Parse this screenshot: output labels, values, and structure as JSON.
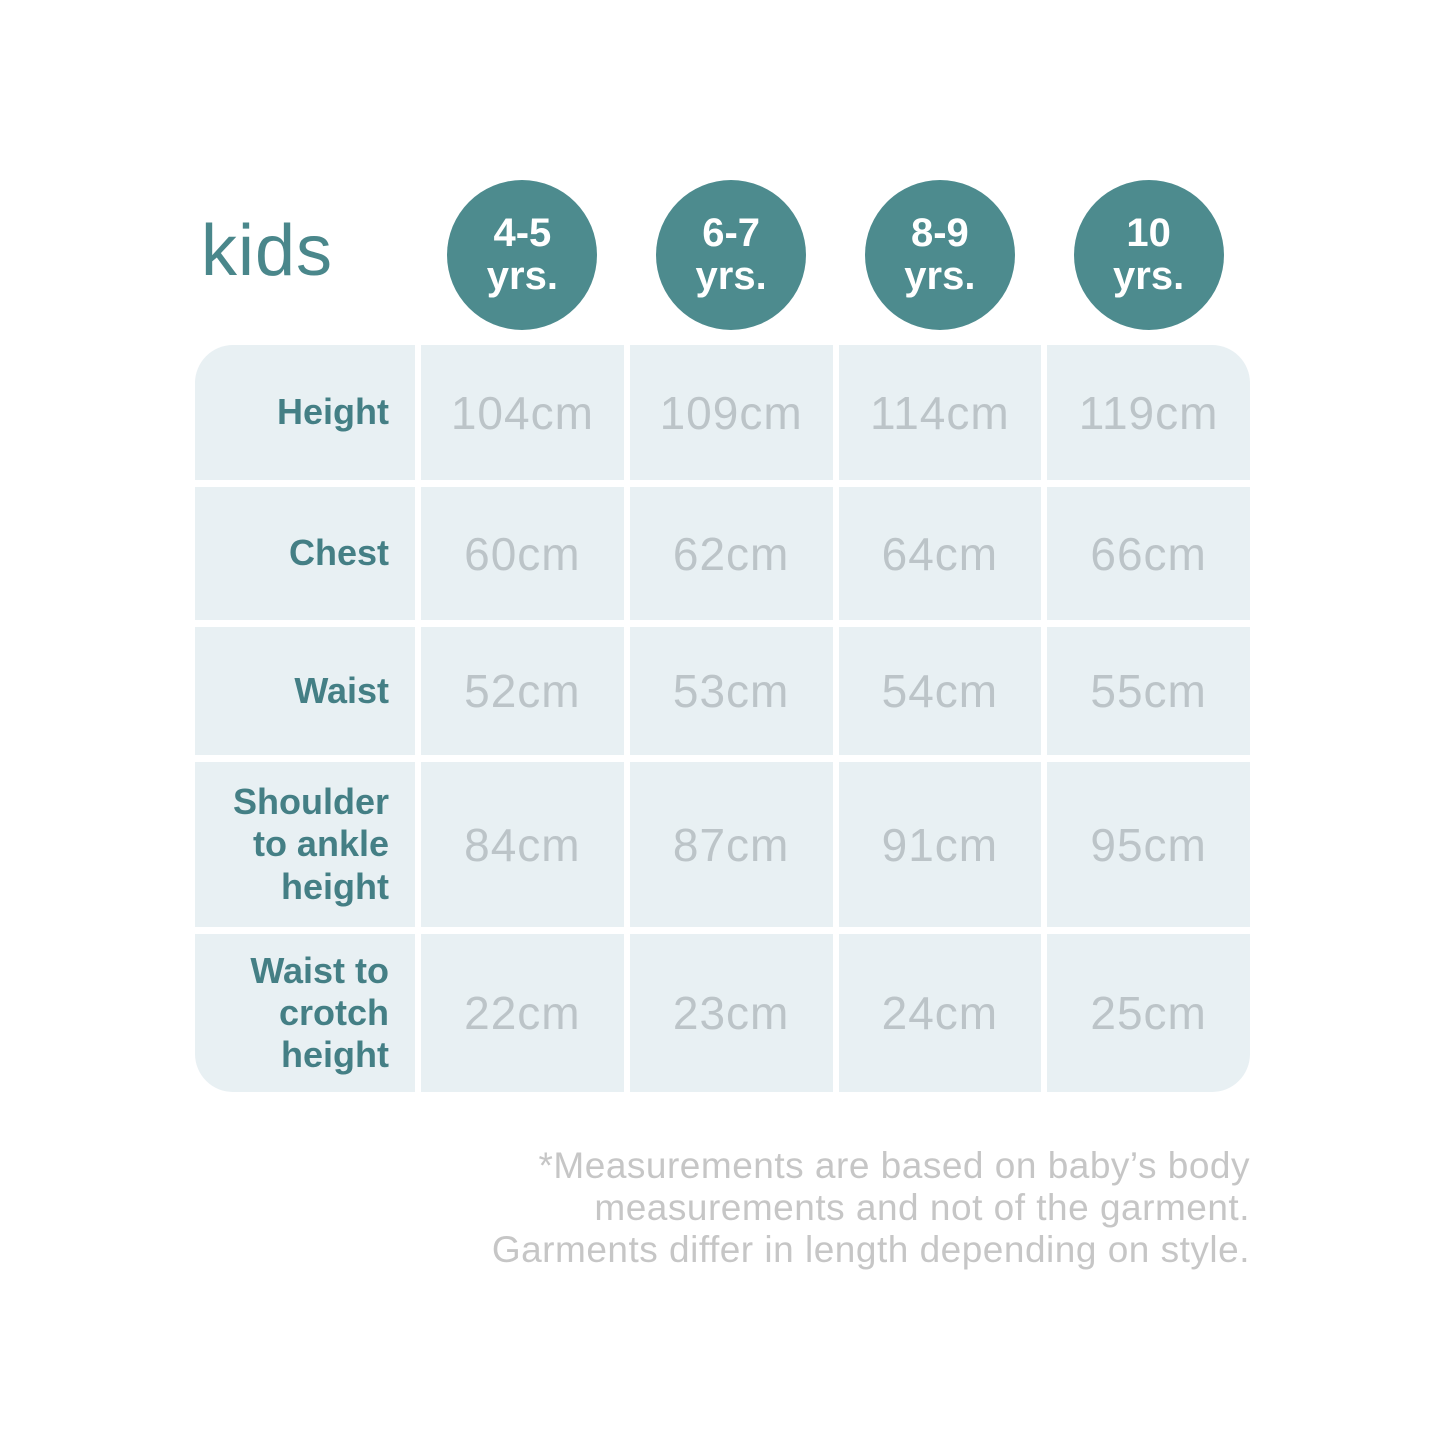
{
  "title": "kids",
  "accent_color": "#4d8b8e",
  "label_color": "#447f85",
  "value_color": "#bcc4c8",
  "cell_bg_color": "#e8f0f3",
  "footnote_color": "#c6c6c6",
  "size_columns": [
    {
      "age": "4-5",
      "unit": "yrs."
    },
    {
      "age": "6-7",
      "unit": "yrs."
    },
    {
      "age": "8-9",
      "unit": "yrs."
    },
    {
      "age": "10",
      "unit": "yrs."
    }
  ],
  "rows": [
    {
      "label": "Height",
      "values": [
        "104cm",
        "109cm",
        "114cm",
        "119cm"
      ]
    },
    {
      "label": "Chest",
      "values": [
        "60cm",
        "62cm",
        "64cm",
        "66cm"
      ]
    },
    {
      "label": "Waist",
      "values": [
        "52cm",
        "53cm",
        "54cm",
        "55cm"
      ]
    },
    {
      "label": "Shoulder to ankle height",
      "values": [
        "84cm",
        "87cm",
        "91cm",
        "95cm"
      ]
    },
    {
      "label": "Waist to crotch height",
      "values": [
        "22cm",
        "23cm",
        "24cm",
        "25cm"
      ]
    }
  ],
  "footnote_lines": [
    "*Measurements are based on baby’s body",
    "measurements and not of the garment.",
    "Garments differ in length depending on style."
  ],
  "chart_data": {
    "type": "table",
    "title": "kids",
    "columns": [
      "4-5 yrs.",
      "6-7 yrs.",
      "8-9 yrs.",
      "10 yrs."
    ],
    "row_headers": [
      "Height",
      "Chest",
      "Waist",
      "Shoulder to ankle height",
      "Waist to crotch height"
    ],
    "unit": "cm",
    "values_cm": [
      [
        104,
        109,
        114,
        119
      ],
      [
        60,
        62,
        64,
        66
      ],
      [
        52,
        53,
        54,
        55
      ],
      [
        84,
        87,
        91,
        95
      ],
      [
        22,
        23,
        24,
        25
      ]
    ],
    "note": "*Measurements are based on baby’s body measurements and not of the garment. Garments differ in length depending on style."
  }
}
